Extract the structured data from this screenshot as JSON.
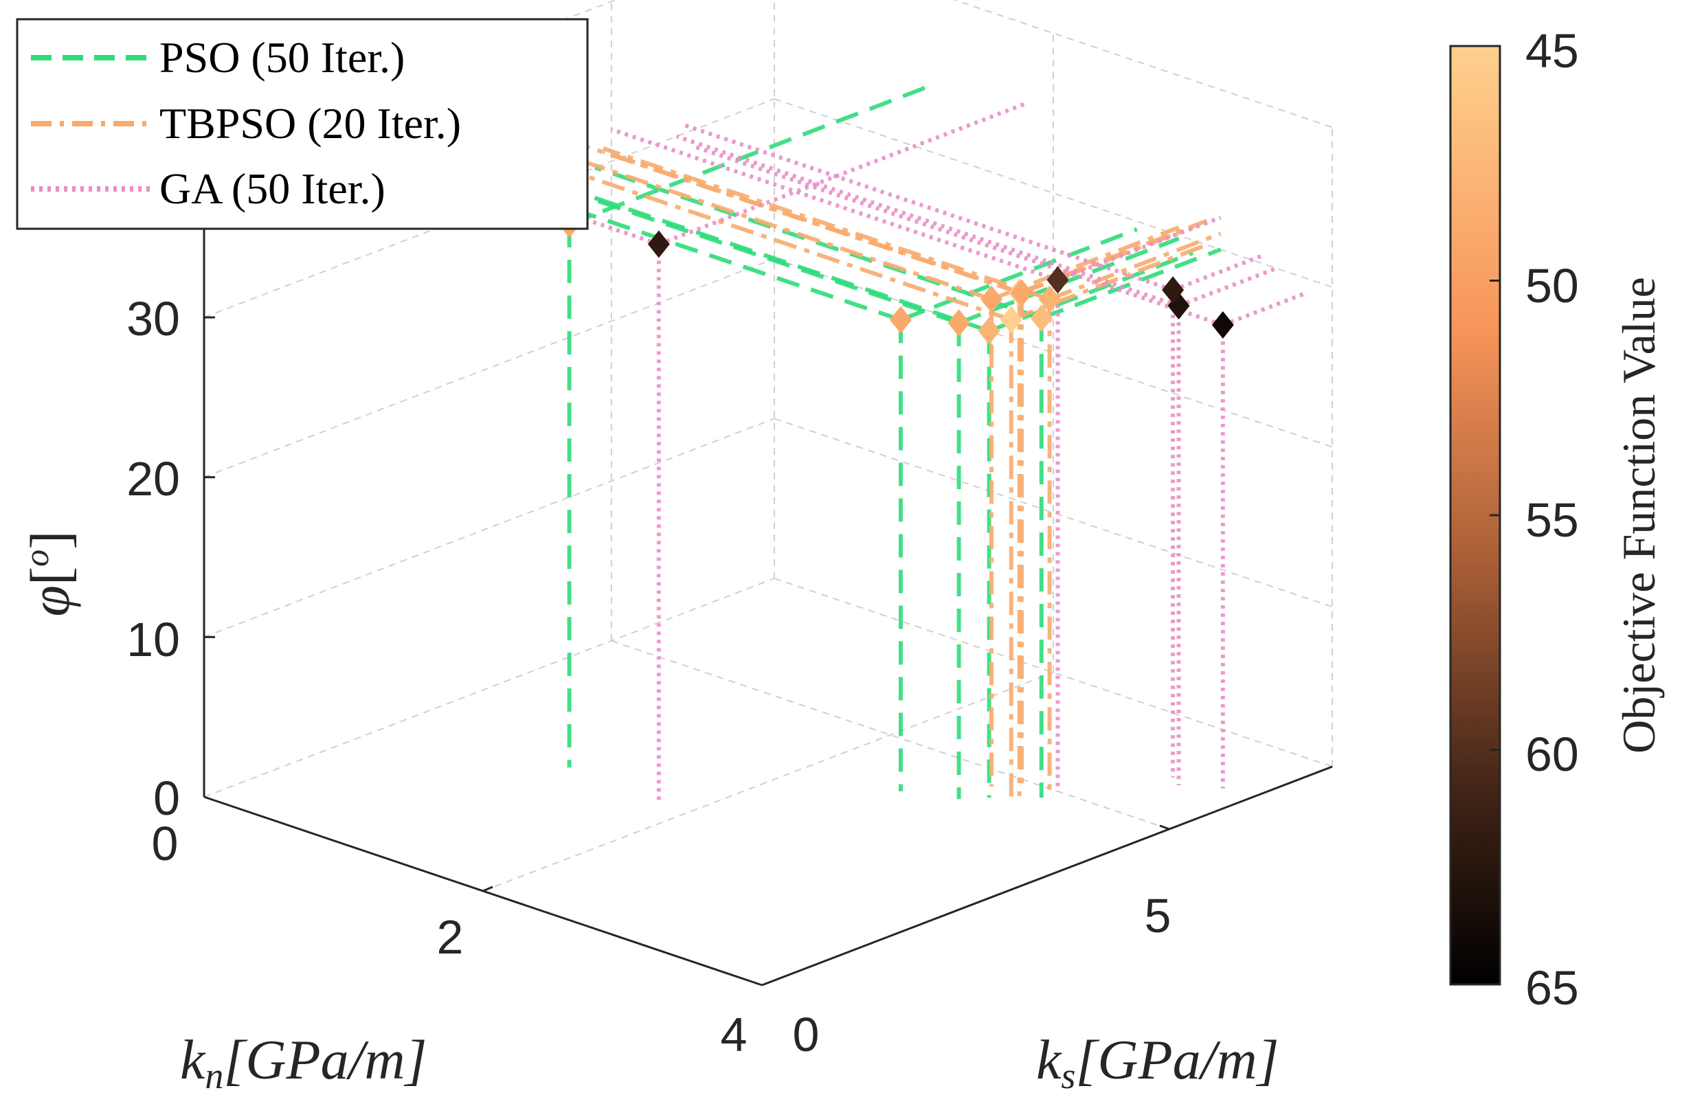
{
  "chart_data": {
    "type": "scatter3d",
    "title": "",
    "xlabel": "k_n[GPa/m]",
    "ylabel": "k_s[GPa/m]",
    "zlabel": "φ[°]",
    "xlabel_parts": {
      "base": "k",
      "sub": "n",
      "rest": "[GPa/m]"
    },
    "ylabel_parts": {
      "base": "k",
      "sub": "s",
      "rest": "[GPa/m]"
    },
    "zlabel_parts": {
      "base": "φ",
      "rest": "[",
      "sup": "o",
      "end": "]"
    },
    "xlim": [
      0,
      4
    ],
    "ylim": [
      0,
      7
    ],
    "zlim": [
      0,
      40
    ],
    "xticks": [
      "0",
      "2",
      "4"
    ],
    "yticks": [
      "0",
      "5"
    ],
    "zticks": [
      "0",
      "10",
      "20",
      "30"
    ],
    "colorbar": {
      "label": "Objective Function Value",
      "ticks": [
        "45",
        "50",
        "55",
        "60",
        "65"
      ],
      "range": [
        45,
        65
      ],
      "reversed": true
    },
    "legend_position": "top-left",
    "series": [
      {
        "name": "PSO (50 Iter.)",
        "style": "dashed",
        "color": "#2EDB7A",
        "points": [
          {
            "x": 2.6,
            "y": 4.1,
            "z": 29.5,
            "v": 49
          },
          {
            "x": 2.9,
            "y": 4.3,
            "z": 29.8,
            "v": 49
          },
          {
            "x": 3.2,
            "y": 4.8,
            "z": 30.0,
            "v": 47
          },
          {
            "x": 3.0,
            "y": 4.5,
            "z": 29.2,
            "v": 48
          },
          {
            "x": 1.1,
            "y": 2.6,
            "z": 34.0,
            "v": 49
          }
        ]
      },
      {
        "name": "TBPSO (20 Iter.)",
        "style": "dashdot",
        "color": "#F7AB6E",
        "points": [
          {
            "x": 3.1,
            "y": 4.7,
            "z": 31.5,
            "v": 46
          },
          {
            "x": 3.2,
            "y": 4.9,
            "z": 31.0,
            "v": 48
          },
          {
            "x": 3.0,
            "y": 4.9,
            "z": 30.8,
            "v": 49
          },
          {
            "x": 2.9,
            "y": 4.7,
            "z": 30.5,
            "v": 49
          },
          {
            "x": 3.1,
            "y": 4.6,
            "z": 30.0,
            "v": 45
          }
        ]
      },
      {
        "name": "GA (50 Iter.)",
        "style": "dotted",
        "color": "#E98FC6",
        "points": [
          {
            "x": 1.8,
            "y": 2.5,
            "z": 35.0,
            "v": 62
          },
          {
            "x": 3.2,
            "y": 5.0,
            "z": 32.0,
            "v": 60
          },
          {
            "x": 3.6,
            "y": 5.8,
            "z": 30.0,
            "v": 63
          },
          {
            "x": 3.5,
            "y": 5.9,
            "z": 30.5,
            "v": 62
          },
          {
            "x": 3.8,
            "y": 6.0,
            "z": 29.0,
            "v": 64
          }
        ]
      }
    ]
  }
}
